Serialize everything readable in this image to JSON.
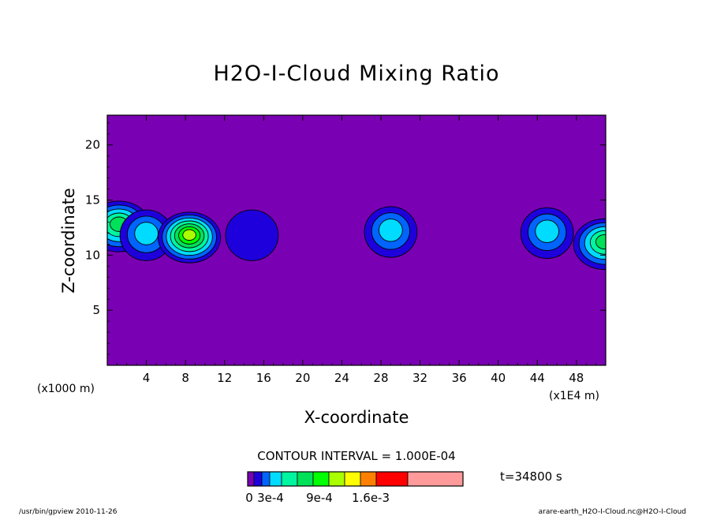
{
  "chart_data": {
    "type": "heatmap",
    "title": "H2O-I-Cloud Mixing Ratio",
    "xlabel": "X-coordinate",
    "ylabel": "Z-coordinate",
    "x_multiplier_label": "(x1000 m)",
    "x_multiplier_label_right": "(x1E4 m)",
    "xlim": [
      0,
      51
    ],
    "ylim": [
      0,
      22.7
    ],
    "x_ticks": [
      4,
      8,
      12,
      16,
      20,
      24,
      28,
      32,
      36,
      40,
      44,
      48
    ],
    "y_ticks": [
      5,
      10,
      15,
      20
    ],
    "grid": false,
    "contour_interval_text": "CONTOUR INTERVAL = 1.000E-04",
    "time_label": "t=34800 s",
    "levels": [
      0,
      0.0001,
      0.0002,
      0.0003,
      0.0004,
      0.0005,
      0.0006,
      0.0007,
      0.0008,
      0.0009,
      0.001,
      0.0012,
      0.0016,
      0.002
    ],
    "colorbar_colors": [
      "#7a00b4",
      "#1e00dc",
      "#0064ff",
      "#00dcff",
      "#00f5a0",
      "#00e15a",
      "#00ff00",
      "#aaff00",
      "#ffff00",
      "#ff8000",
      "#ff0000",
      "#ff9a9a"
    ],
    "background_color": "#7a00b4",
    "colorbar_labels": [
      "0",
      "3e-4",
      "9e-4",
      "1.6e-3"
    ],
    "cloud_cells": [
      {
        "x": 1.2,
        "z": 12.6,
        "peak": 0.0005
      },
      {
        "x": 4.0,
        "z": 11.8,
        "peak": 0.0003
      },
      {
        "x": 8.4,
        "z": 11.6,
        "peak": 0.0007
      },
      {
        "x": 14.8,
        "z": 11.8,
        "peak": 0.0001
      },
      {
        "x": 29.0,
        "z": 12.1,
        "peak": 0.0003
      },
      {
        "x": 45.0,
        "z": 12.0,
        "peak": 0.0003
      },
      {
        "x": 50.9,
        "z": 11.0,
        "peak": 0.0005
      }
    ]
  },
  "footer": {
    "left": "/usr/bin/gpview  2010-11-26",
    "right": "arare-earth_H2O-I-Cloud.nc@H2O-I-Cloud"
  }
}
